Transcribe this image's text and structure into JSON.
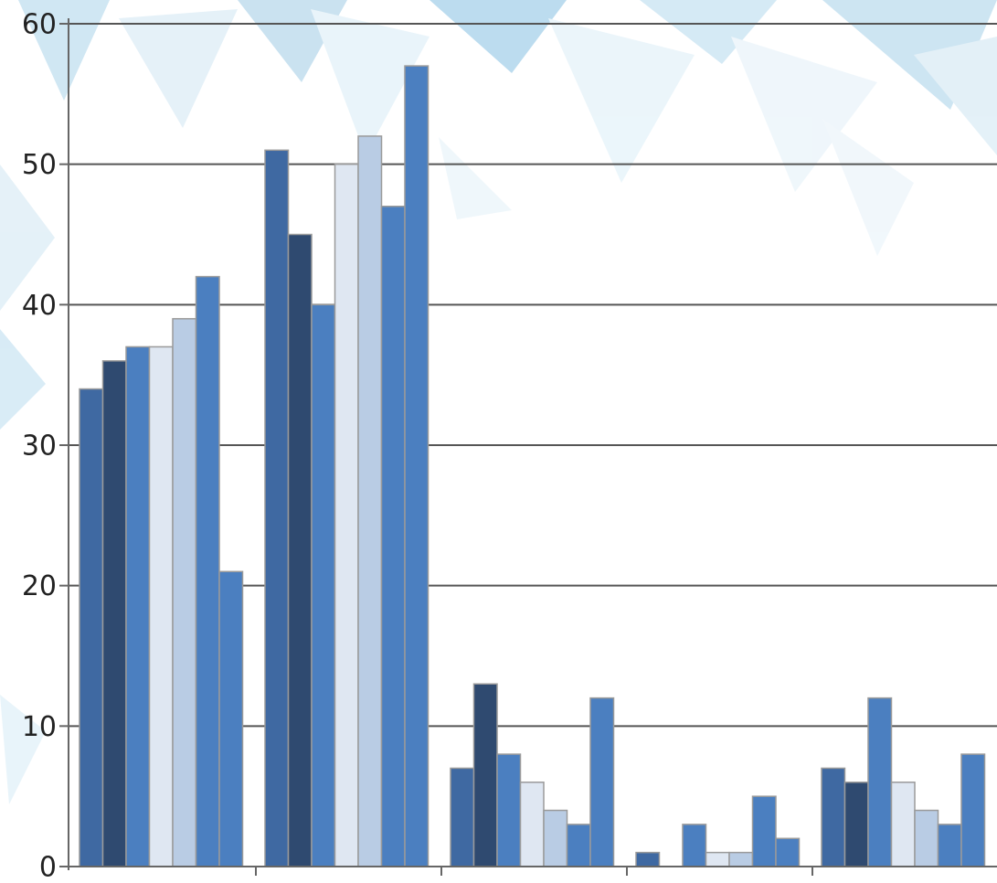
{
  "chart_data": {
    "type": "bar",
    "categories": [
      null,
      null,
      null,
      null,
      null
    ],
    "series": [
      {
        "color": "#3f69a2",
        "values": [
          34,
          51,
          7,
          1,
          7
        ]
      },
      {
        "color": "#2f4a70",
        "values": [
          36,
          45,
          13,
          0,
          6
        ]
      },
      {
        "color": "#4b7fc0",
        "values": [
          37,
          40,
          8,
          3,
          12
        ]
      },
      {
        "color": "#dfe7f2",
        "values": [
          37,
          50,
          6,
          1,
          6
        ]
      },
      {
        "color": "#b9cce4",
        "values": [
          39,
          52,
          4,
          1,
          4
        ]
      },
      {
        "color": "#4b7fc0",
        "values": [
          42,
          47,
          3,
          5,
          3
        ]
      },
      {
        "color": "#4b7fc0",
        "values": [
          21,
          57,
          12,
          2,
          8
        ]
      }
    ],
    "ylim": [
      0,
      60
    ],
    "yticks": [
      0,
      10,
      20,
      30,
      40,
      50,
      60
    ],
    "grid": true
  }
}
